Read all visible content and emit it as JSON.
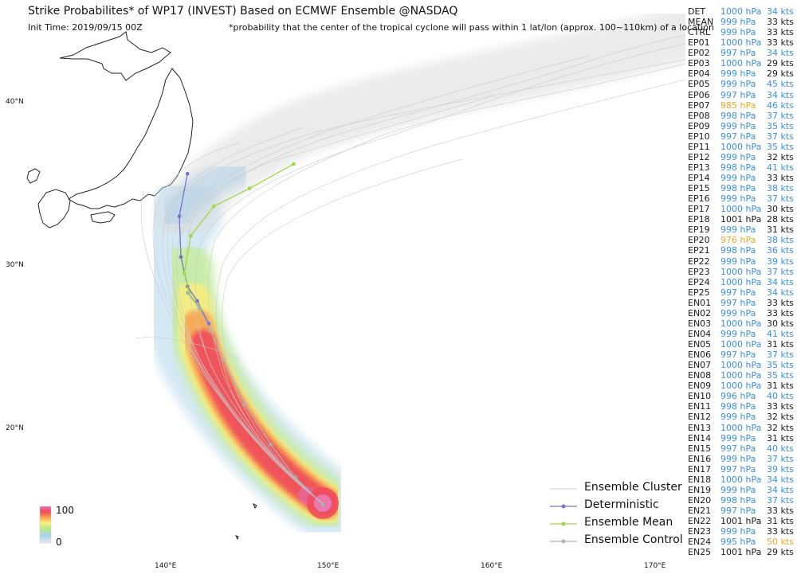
{
  "header": {
    "title": "Strike Probabilites* of WP17 (INVEST) Based on ECMWF Ensemble  @NASDAQ",
    "init_time": "Init Time: 2019/09/15 00Z",
    "footnote": "*probability that the center of the tropical cyclone will pass within 1 lat/lon (approx. 100~110km) of a location"
  },
  "axes": {
    "lat_labels": [
      "40°N",
      "30°N",
      "20°N"
    ],
    "lon_labels": [
      "140°E",
      "150°E",
      "160°E",
      "170°E"
    ]
  },
  "colorbar": {
    "max_label": "100",
    "min_label": "0"
  },
  "legend": {
    "ensemble_cluster": "Ensemble Cluster",
    "deterministic": "Deterministic",
    "ensemble_mean": "Ensemble Mean",
    "ensemble_control": "Ensemble Control"
  },
  "colors": {
    "normal": "#1a1a1a",
    "blue": "#3b8fe6",
    "orange": "#f5a623",
    "deterministic": "#7b6fd1",
    "mean": "#9fd843",
    "control": "#b0b0b0",
    "cluster": "#cfcfcf"
  },
  "tracks": {
    "deterministic": [
      [
        35.6,
        141.5
      ],
      [
        33.0,
        141.0
      ],
      [
        30.5,
        141.1
      ],
      [
        28.7,
        141.5
      ],
      [
        27.8,
        142.1
      ],
      [
        26.4,
        142.8
      ]
    ],
    "ensemble_mean": [
      [
        36.2,
        148.0
      ],
      [
        34.7,
        145.3
      ],
      [
        33.6,
        143.1
      ],
      [
        31.8,
        141.7
      ],
      [
        29.5,
        141.3
      ],
      [
        28.3,
        141.6
      ],
      [
        27.3,
        142.3
      ]
    ],
    "ensemble_control": [
      [
        28.3,
        141.5
      ],
      [
        27.4,
        142.2
      ],
      [
        26.0,
        142.9
      ],
      [
        24.2,
        143.7
      ],
      [
        21.5,
        145.0
      ],
      [
        19.0,
        146.6
      ],
      [
        17.0,
        148.1
      ],
      [
        15.3,
        149.8
      ]
    ]
  },
  "members": [
    {
      "name": "DET",
      "pressure": "1000 hPa",
      "p_color": "blue",
      "wind": "34 kts",
      "w_color": "blue"
    },
    {
      "name": "MEAN",
      "pressure": "999 hPa",
      "p_color": "blue",
      "wind": "33 kts",
      "w_color": "normal"
    },
    {
      "name": "CTRL",
      "pressure": "999 hPa",
      "p_color": "blue",
      "wind": "33 kts",
      "w_color": "normal"
    },
    {
      "name": "EP01",
      "pressure": "1000 hPa",
      "p_color": "blue",
      "wind": "33 kts",
      "w_color": "normal"
    },
    {
      "name": "EP02",
      "pressure": "997 hPa",
      "p_color": "blue",
      "wind": "34 kts",
      "w_color": "blue"
    },
    {
      "name": "EP03",
      "pressure": "1000 hPa",
      "p_color": "blue",
      "wind": "29 kts",
      "w_color": "normal"
    },
    {
      "name": "EP04",
      "pressure": "999 hPa",
      "p_color": "blue",
      "wind": "29 kts",
      "w_color": "normal"
    },
    {
      "name": "EP05",
      "pressure": "999 hPa",
      "p_color": "blue",
      "wind": "45 kts",
      "w_color": "blue"
    },
    {
      "name": "EP06",
      "pressure": "997 hPa",
      "p_color": "blue",
      "wind": "34 kts",
      "w_color": "blue"
    },
    {
      "name": "EP07",
      "pressure": "985 hPa",
      "p_color": "orange",
      "wind": "46 kts",
      "w_color": "blue"
    },
    {
      "name": "EP08",
      "pressure": "998 hPa",
      "p_color": "blue",
      "wind": "37 kts",
      "w_color": "blue"
    },
    {
      "name": "EP09",
      "pressure": "999 hPa",
      "p_color": "blue",
      "wind": "35 kts",
      "w_color": "blue"
    },
    {
      "name": "EP10",
      "pressure": "997 hPa",
      "p_color": "blue",
      "wind": "37 kts",
      "w_color": "blue"
    },
    {
      "name": "EP11",
      "pressure": "1000 hPa",
      "p_color": "blue",
      "wind": "35 kts",
      "w_color": "blue"
    },
    {
      "name": "EP12",
      "pressure": "999 hPa",
      "p_color": "blue",
      "wind": "32 kts",
      "w_color": "normal"
    },
    {
      "name": "EP13",
      "pressure": "998 hPa",
      "p_color": "blue",
      "wind": "41 kts",
      "w_color": "blue"
    },
    {
      "name": "EP14",
      "pressure": "999 hPa",
      "p_color": "blue",
      "wind": "33 kts",
      "w_color": "normal"
    },
    {
      "name": "EP15",
      "pressure": "998 hPa",
      "p_color": "blue",
      "wind": "38 kts",
      "w_color": "blue"
    },
    {
      "name": "EP16",
      "pressure": "999 hPa",
      "p_color": "blue",
      "wind": "37 kts",
      "w_color": "blue"
    },
    {
      "name": "EP17",
      "pressure": "1000 hPa",
      "p_color": "blue",
      "wind": "30 kts",
      "w_color": "normal"
    },
    {
      "name": "EP18",
      "pressure": "1001 hPa",
      "p_color": "normal",
      "wind": "28 kts",
      "w_color": "normal"
    },
    {
      "name": "EP19",
      "pressure": "999 hPa",
      "p_color": "blue",
      "wind": "31 kts",
      "w_color": "normal"
    },
    {
      "name": "EP20",
      "pressure": "976 hPa",
      "p_color": "orange",
      "wind": "38 kts",
      "w_color": "blue"
    },
    {
      "name": "EP21",
      "pressure": "998 hPa",
      "p_color": "blue",
      "wind": "36 kts",
      "w_color": "blue"
    },
    {
      "name": "EP22",
      "pressure": "999 hPa",
      "p_color": "blue",
      "wind": "39 kts",
      "w_color": "blue"
    },
    {
      "name": "EP23",
      "pressure": "1000 hPa",
      "p_color": "blue",
      "wind": "37 kts",
      "w_color": "blue"
    },
    {
      "name": "EP24",
      "pressure": "1000 hPa",
      "p_color": "blue",
      "wind": "34 kts",
      "w_color": "blue"
    },
    {
      "name": "EP25",
      "pressure": "997 hPa",
      "p_color": "blue",
      "wind": "34 kts",
      "w_color": "blue"
    },
    {
      "name": "EN01",
      "pressure": "997 hPa",
      "p_color": "blue",
      "wind": "33 kts",
      "w_color": "normal"
    },
    {
      "name": "EN02",
      "pressure": "999 hPa",
      "p_color": "blue",
      "wind": "33 kts",
      "w_color": "normal"
    },
    {
      "name": "EN03",
      "pressure": "1000 hPa",
      "p_color": "blue",
      "wind": "30 kts",
      "w_color": "normal"
    },
    {
      "name": "EN04",
      "pressure": "999 hPa",
      "p_color": "blue",
      "wind": "41 kts",
      "w_color": "blue"
    },
    {
      "name": "EN05",
      "pressure": "1000 hPa",
      "p_color": "blue",
      "wind": "31 kts",
      "w_color": "normal"
    },
    {
      "name": "EN06",
      "pressure": "997 hPa",
      "p_color": "blue",
      "wind": "37 kts",
      "w_color": "blue"
    },
    {
      "name": "EN07",
      "pressure": "1000 hPa",
      "p_color": "blue",
      "wind": "35 kts",
      "w_color": "blue"
    },
    {
      "name": "EN08",
      "pressure": "1000 hPa",
      "p_color": "blue",
      "wind": "35 kts",
      "w_color": "blue"
    },
    {
      "name": "EN09",
      "pressure": "1000 hPa",
      "p_color": "blue",
      "wind": "31 kts",
      "w_color": "normal"
    },
    {
      "name": "EN10",
      "pressure": "996 hPa",
      "p_color": "blue",
      "wind": "40 kts",
      "w_color": "blue"
    },
    {
      "name": "EN11",
      "pressure": "998 hPa",
      "p_color": "blue",
      "wind": "33 kts",
      "w_color": "normal"
    },
    {
      "name": "EN12",
      "pressure": "999 hPa",
      "p_color": "blue",
      "wind": "32 kts",
      "w_color": "normal"
    },
    {
      "name": "EN13",
      "pressure": "1000 hPa",
      "p_color": "blue",
      "wind": "32 kts",
      "w_color": "normal"
    },
    {
      "name": "EN14",
      "pressure": "999 hPa",
      "p_color": "blue",
      "wind": "31 kts",
      "w_color": "normal"
    },
    {
      "name": "EN15",
      "pressure": "997 hPa",
      "p_color": "blue",
      "wind": "40 kts",
      "w_color": "blue"
    },
    {
      "name": "EN16",
      "pressure": "999 hPa",
      "p_color": "blue",
      "wind": "37 kts",
      "w_color": "blue"
    },
    {
      "name": "EN17",
      "pressure": "997 hPa",
      "p_color": "blue",
      "wind": "39 kts",
      "w_color": "blue"
    },
    {
      "name": "EN18",
      "pressure": "1000 hPa",
      "p_color": "blue",
      "wind": "34 kts",
      "w_color": "blue"
    },
    {
      "name": "EN19",
      "pressure": "999 hPa",
      "p_color": "blue",
      "wind": "34 kts",
      "w_color": "blue"
    },
    {
      "name": "EN20",
      "pressure": "998 hPa",
      "p_color": "blue",
      "wind": "37 kts",
      "w_color": "blue"
    },
    {
      "name": "EN21",
      "pressure": "997 hPa",
      "p_color": "blue",
      "wind": "33 kts",
      "w_color": "normal"
    },
    {
      "name": "EN22",
      "pressure": "1001 hPa",
      "p_color": "normal",
      "wind": "31 kts",
      "w_color": "normal"
    },
    {
      "name": "EN23",
      "pressure": "999 hPa",
      "p_color": "blue",
      "wind": "33 kts",
      "w_color": "normal"
    },
    {
      "name": "EN24",
      "pressure": "995 hPa",
      "p_color": "blue",
      "wind": "50 kts",
      "w_color": "orange"
    },
    {
      "name": "EN25",
      "pressure": "1001 hPa",
      "p_color": "normal",
      "wind": "29 kts",
      "w_color": "normal"
    }
  ]
}
